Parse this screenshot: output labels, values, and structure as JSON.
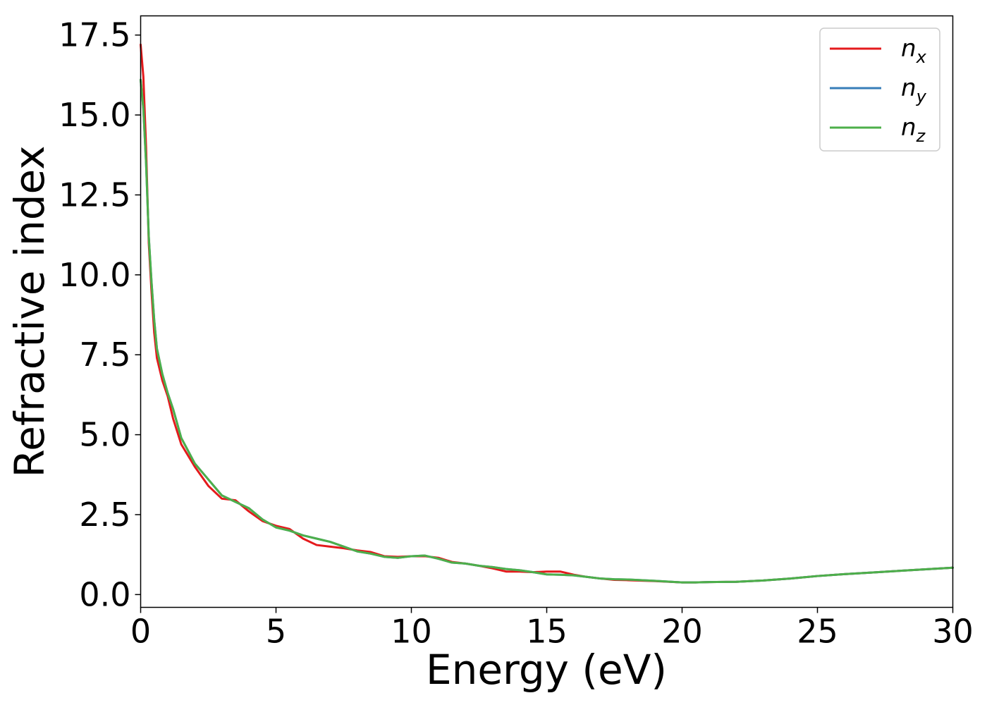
{
  "chart_data": {
    "type": "line",
    "title": "",
    "xlabel": "Energy (eV)",
    "ylabel": "Refractive index",
    "xlim": [
      0,
      30
    ],
    "ylim": [
      -0.4,
      18.1
    ],
    "xticks": [
      0,
      5,
      10,
      15,
      20,
      25,
      30
    ],
    "xtick_labels": [
      "0",
      "5",
      "10",
      "15",
      "20",
      "25",
      "30"
    ],
    "yticks": [
      0,
      2.5,
      5,
      7.5,
      10,
      12.5,
      15,
      17.5
    ],
    "ytick_labels": [
      "0.0",
      "2.5",
      "5.0",
      "7.5",
      "10.0",
      "12.5",
      "15.0",
      "17.5"
    ],
    "grid": false,
    "legend_position": "top-right",
    "series": [
      {
        "name": "n",
        "subscript": "x",
        "color": "#e41a1c",
        "x": [
          0,
          0.1,
          0.2,
          0.3,
          0.4,
          0.5,
          0.6,
          0.8,
          1.0,
          1.2,
          1.5,
          2.0,
          2.5,
          3.0,
          3.5,
          4.0,
          4.5,
          5.0,
          5.5,
          6.0,
          6.5,
          7.0,
          7.5,
          8.0,
          8.5,
          9.0,
          9.5,
          10.0,
          10.5,
          11.0,
          11.5,
          12.0,
          12.5,
          13.0,
          13.5,
          14.0,
          14.5,
          15.0,
          15.5,
          16.0,
          16.5,
          17.0,
          17.5,
          18.0,
          19.0,
          20.0,
          20.5,
          21.0,
          22.0,
          23.0,
          24.0,
          25.0,
          26.0,
          27.0,
          28.0,
          29.0,
          30.0
        ],
        "y": [
          17.2,
          16.2,
          14.0,
          11.0,
          9.5,
          8.2,
          7.4,
          6.7,
          6.2,
          5.5,
          4.7,
          4.0,
          3.4,
          3.0,
          2.95,
          2.6,
          2.3,
          2.15,
          2.05,
          1.75,
          1.55,
          1.5,
          1.45,
          1.38,
          1.33,
          1.2,
          1.18,
          1.2,
          1.2,
          1.15,
          1.02,
          0.97,
          0.9,
          0.82,
          0.72,
          0.72,
          0.7,
          0.72,
          0.72,
          0.62,
          0.55,
          0.5,
          0.46,
          0.45,
          0.42,
          0.38,
          0.38,
          0.39,
          0.4,
          0.44,
          0.5,
          0.58,
          0.64,
          0.69,
          0.74,
          0.79,
          0.84
        ]
      },
      {
        "name": "n",
        "subscript": "y",
        "color": "#377eb8",
        "x": [
          0,
          0.1,
          0.2,
          0.3,
          0.4,
          0.5,
          0.6,
          0.8,
          1.0,
          1.2,
          1.5,
          2.0,
          2.5,
          3.0,
          3.5,
          4.0,
          4.5,
          5.0,
          5.5,
          6.0,
          6.5,
          7.0,
          7.5,
          8.0,
          8.5,
          9.0,
          9.5,
          10.0,
          10.5,
          11.0,
          11.5,
          12.0,
          12.5,
          13.0,
          13.5,
          14.0,
          14.5,
          15.0,
          15.5,
          16.0,
          16.5,
          17.0,
          17.5,
          18.0,
          19.0,
          20.0,
          20.5,
          21.0,
          22.0,
          23.0,
          24.0,
          25.0,
          26.0,
          27.0,
          28.0,
          29.0,
          30.0
        ],
        "y": [
          16.1,
          15.2,
          13.5,
          11.2,
          9.8,
          8.6,
          7.7,
          6.9,
          6.3,
          5.8,
          4.9,
          4.1,
          3.6,
          3.1,
          2.9,
          2.7,
          2.35,
          2.1,
          2.0,
          1.85,
          1.75,
          1.65,
          1.5,
          1.35,
          1.28,
          1.18,
          1.15,
          1.2,
          1.22,
          1.12,
          1.0,
          0.97,
          0.9,
          0.86,
          0.8,
          0.76,
          0.7,
          0.63,
          0.62,
          0.6,
          0.55,
          0.5,
          0.48,
          0.47,
          0.43,
          0.38,
          0.38,
          0.39,
          0.4,
          0.44,
          0.5,
          0.58,
          0.64,
          0.69,
          0.74,
          0.79,
          0.84
        ]
      },
      {
        "name": "n",
        "subscript": "z",
        "color": "#4daf4a",
        "x": [
          0,
          0.1,
          0.2,
          0.3,
          0.4,
          0.5,
          0.6,
          0.8,
          1.0,
          1.2,
          1.5,
          2.0,
          2.5,
          3.0,
          3.5,
          4.0,
          4.5,
          5.0,
          5.5,
          6.0,
          6.5,
          7.0,
          7.5,
          8.0,
          8.5,
          9.0,
          9.5,
          10.0,
          10.5,
          11.0,
          11.5,
          12.0,
          12.5,
          13.0,
          13.5,
          14.0,
          14.5,
          15.0,
          15.5,
          16.0,
          16.5,
          17.0,
          17.5,
          18.0,
          19.0,
          20.0,
          20.5,
          21.0,
          22.0,
          23.0,
          24.0,
          25.0,
          26.0,
          27.0,
          28.0,
          29.0,
          30.0
        ],
        "y": [
          16.1,
          15.2,
          13.5,
          11.2,
          9.8,
          8.6,
          7.7,
          6.9,
          6.3,
          5.8,
          4.9,
          4.1,
          3.6,
          3.1,
          2.9,
          2.7,
          2.35,
          2.1,
          2.0,
          1.85,
          1.75,
          1.65,
          1.5,
          1.35,
          1.28,
          1.18,
          1.15,
          1.2,
          1.22,
          1.12,
          1.0,
          0.97,
          0.9,
          0.86,
          0.8,
          0.76,
          0.7,
          0.63,
          0.62,
          0.6,
          0.55,
          0.5,
          0.48,
          0.47,
          0.43,
          0.38,
          0.38,
          0.39,
          0.4,
          0.44,
          0.5,
          0.58,
          0.64,
          0.69,
          0.74,
          0.79,
          0.84
        ]
      }
    ]
  }
}
